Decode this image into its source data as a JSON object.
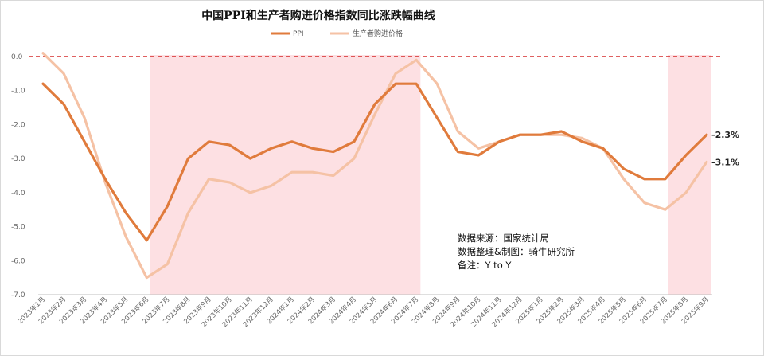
{
  "chart_data": {
    "type": "line",
    "title": "中国PPI和生产者购进价格指数同比涨跌幅曲线",
    "xlabel": "",
    "ylabel": "",
    "ylim": [
      -7.0,
      0.0
    ],
    "yticks": [
      "0.0",
      "-1.0",
      "-2.0",
      "-3.0",
      "-4.0",
      "-5.0",
      "-6.0",
      "-7.0"
    ],
    "grid": false,
    "legend_position": "top",
    "x": [
      "2023年1月",
      "2023年2月",
      "2023年3月",
      "2023年4月",
      "2023年5月",
      "2023年6月",
      "2023年7月",
      "2023年8月",
      "2023年9月",
      "2023年10月",
      "2023年11月",
      "2023年12月",
      "2024年1月",
      "2024年2月",
      "2024年3月",
      "2024年4月",
      "2024年5月",
      "2024年6月",
      "2024年7月",
      "2024年8月",
      "2024年9月",
      "2024年10月",
      "2024年11月",
      "2024年12月",
      "2025年1月",
      "2025年2月",
      "2025年3月",
      "2025年4月",
      "2025年5月",
      "2025年6月",
      "2025年7月",
      "2025年8月",
      "2025年9月"
    ],
    "series": [
      {
        "name": "PPI",
        "color": "#E07B3C",
        "values": [
          -0.8,
          -1.4,
          -2.5,
          -3.6,
          -4.6,
          -5.4,
          -4.4,
          -3.0,
          -2.5,
          -2.6,
          -3.0,
          -2.7,
          -2.5,
          -2.7,
          -2.8,
          -2.5,
          -1.4,
          -0.8,
          -0.8,
          -1.8,
          -2.8,
          -2.9,
          -2.5,
          -2.3,
          -2.3,
          -2.2,
          -2.5,
          -2.7,
          -3.3,
          -3.6,
          -3.6,
          -2.9,
          -2.3
        ],
        "end_label": "-2.3%"
      },
      {
        "name": "生产者购进价格",
        "color": "#F5C2A5",
        "values": [
          0.1,
          -0.5,
          -1.8,
          -3.7,
          -5.3,
          -6.5,
          -6.1,
          -4.6,
          -3.6,
          -3.7,
          -4.0,
          -3.8,
          -3.4,
          -3.4,
          -3.5,
          -3.0,
          -1.7,
          -0.5,
          -0.1,
          -0.8,
          -2.2,
          -2.7,
          -2.5,
          -2.3,
          -2.3,
          -2.3,
          -2.4,
          -2.7,
          -3.6,
          -4.3,
          -4.5,
          -4.0,
          -3.1
        ],
        "end_label": "-3.1%"
      }
    ],
    "reference_line": {
      "y": 0.0,
      "color": "#CC0000",
      "style": "dashed"
    },
    "shaded_ranges": [
      {
        "from": "2023年6月",
        "to": "2024年7月",
        "color": "#FDE0E3"
      },
      {
        "from": "2025年7月",
        "to": "2025年9月",
        "color": "#FDE0E3"
      }
    ],
    "annotations": [
      "数据来源：国家统计局",
      "数据整理&制图：骑牛研究所",
      "备注：Y to Y"
    ]
  }
}
